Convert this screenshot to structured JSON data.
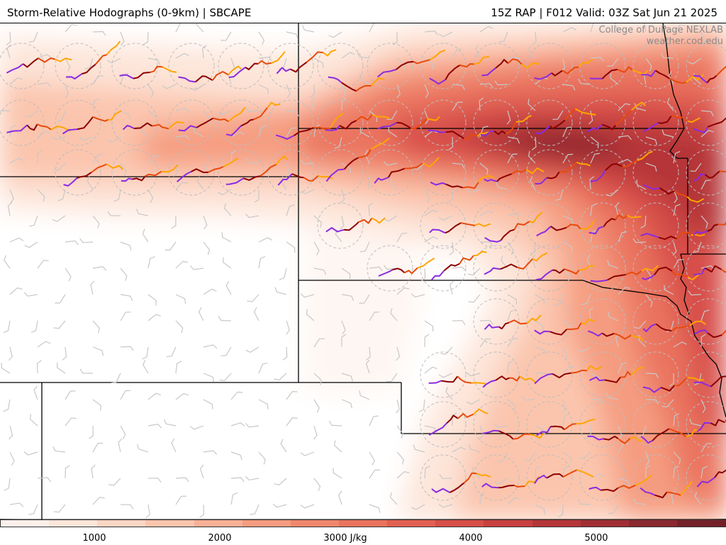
{
  "header": {
    "title_left": "Storm-Relative Hodographs (0-9km) | SBCAPE",
    "title_right": "15Z RAP | F012 Valid: 03Z Sat Jun 21 2025"
  },
  "credit": {
    "line1": "College of DuPage NEXLAB",
    "line2": "weather.cod.edu"
  },
  "colorbar": {
    "labels": [
      "1000",
      "2000",
      "3000 J/kg",
      "4000",
      "5000"
    ],
    "colors": [
      "#fdf0ea",
      "#fde5d9",
      "#fcd6c4",
      "#fbc5ad",
      "#f9b096",
      "#f59c80",
      "#f0876d",
      "#ea735e",
      "#e26052",
      "#d74e48",
      "#c8403f",
      "#b53638",
      "#a02e33",
      "#8a282e",
      "#742129"
    ]
  },
  "legend": {
    "hodograph_layers": [
      "#8a2be2",
      "#8b0000",
      "#e84a0c",
      "#ffa500"
    ]
  }
}
